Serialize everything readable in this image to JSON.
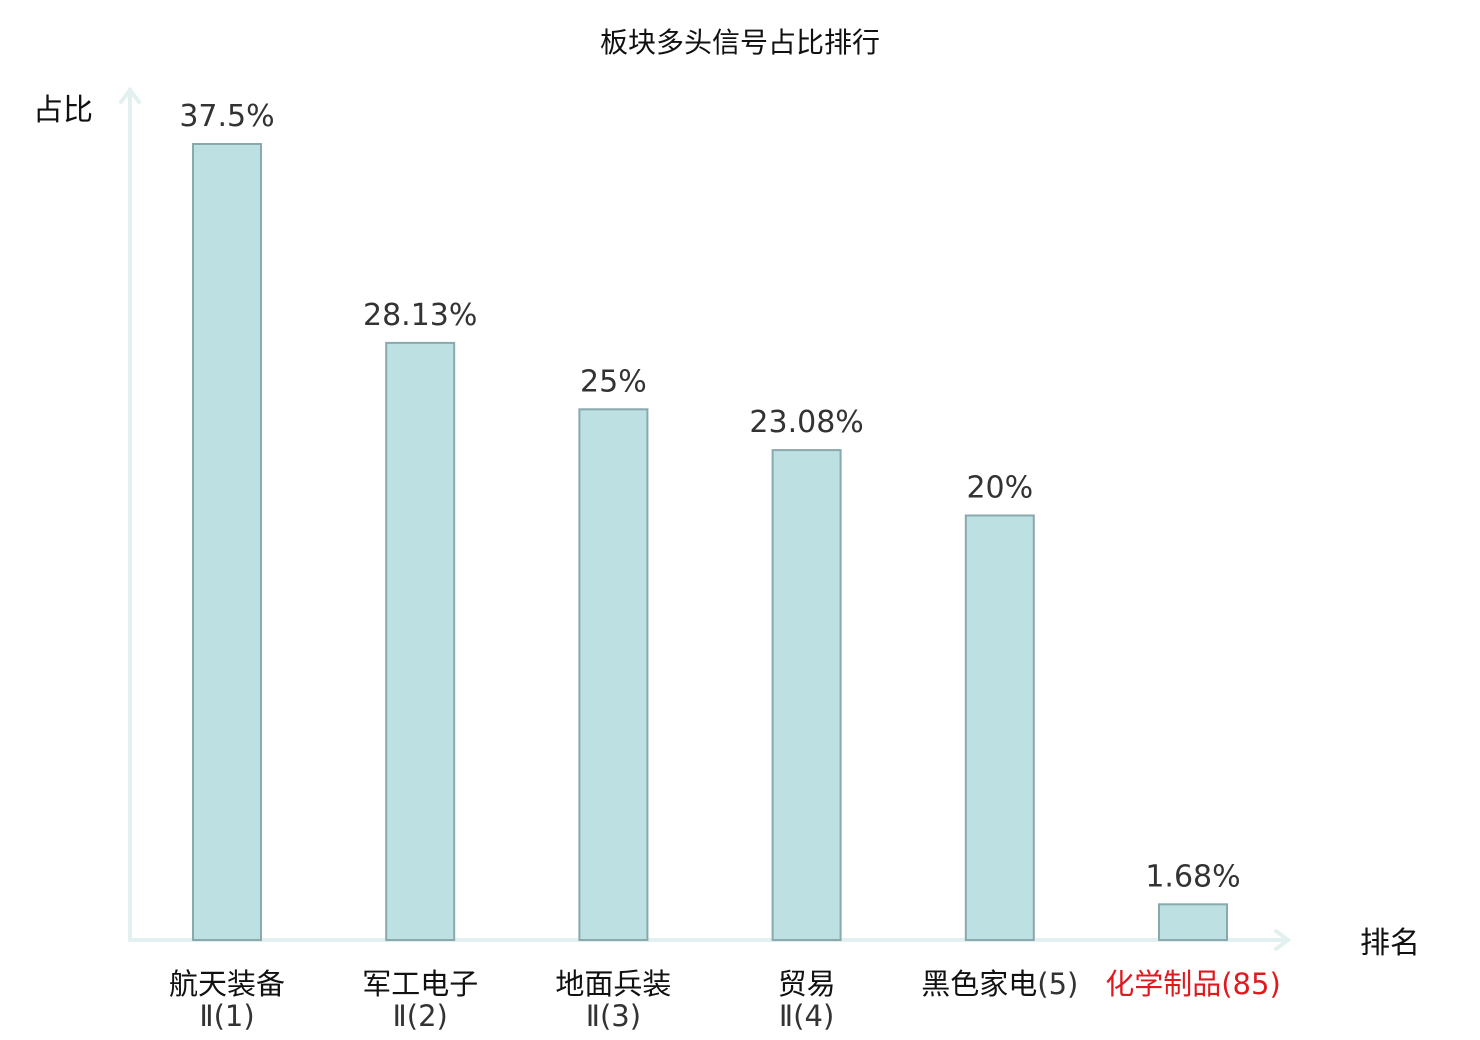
{
  "chart_data": {
    "type": "bar",
    "title": "板块多头信号占比排行",
    "ylabel": "占比",
    "xlabel": "排名",
    "ylim": [
      0,
      37.5
    ],
    "grid": false,
    "categories": [
      {
        "name": "航天装备",
        "suffix": "Ⅱ(1)",
        "color": "#111111",
        "suffix_color": "#333333"
      },
      {
        "name": "军工电子",
        "suffix": "Ⅱ(2)",
        "color": "#111111",
        "suffix_color": "#333333"
      },
      {
        "name": "地面兵装",
        "suffix": "Ⅱ(3)",
        "color": "#111111",
        "suffix_color": "#333333"
      },
      {
        "name": "贸易",
        "suffix": "Ⅱ(4)",
        "color": "#111111",
        "suffix_color": "#333333"
      },
      {
        "name": "黑色家电",
        "suffix": "(5)",
        "color": "#111111",
        "suffix_color": "#333333"
      },
      {
        "name": "化学制品",
        "suffix": "(85)",
        "color": "#e0191f",
        "suffix_color": "#e0191f"
      }
    ],
    "values": [
      37.5,
      28.13,
      25,
      23.08,
      20,
      1.68
    ],
    "value_labels": [
      "37.5%",
      "28.13%",
      "25%",
      "23.08%",
      "20%",
      "1.68%"
    ],
    "colors": {
      "bar_fill": "#bde0e3",
      "bar_stroke": "#8aa9ad",
      "axis": "#e2f1ef",
      "highlight": "#e0191f"
    }
  }
}
